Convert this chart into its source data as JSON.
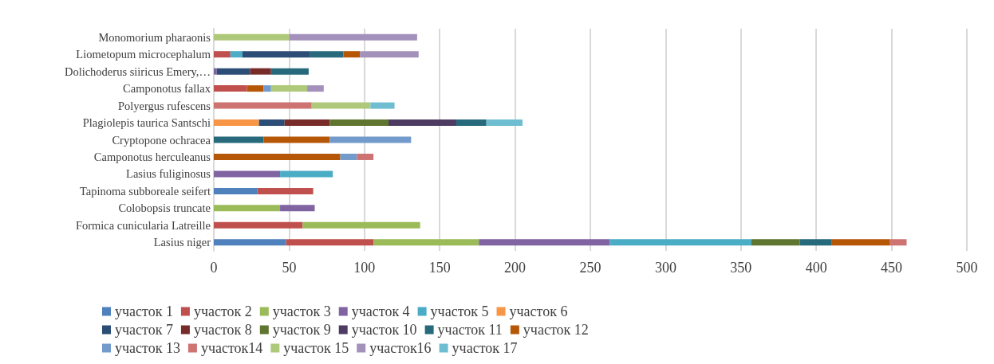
{
  "chart_data": {
    "type": "bar",
    "orientation": "horizontal",
    "stacked": true,
    "grid": "x",
    "legend": "bottom",
    "categories": [
      "Monomorium pharaonis",
      "Liometopum microcephalum",
      "Dolichoderus siiricus Emery,…",
      "Camponotus fallax",
      "Polyergus rufescens",
      "Plagiolepis taurica Santschi",
      "Cryptopone ochracea",
      "Camponotus herculeanus",
      "Lasius fuliginosus",
      "Tapinoma subboreale seifert",
      "Colobopsis truncate",
      "Formica cunicularia Latreille",
      "Lasius niger"
    ],
    "xlim": [
      0,
      500
    ],
    "xticks": [
      0,
      50,
      100,
      150,
      200,
      250,
      300,
      350,
      400,
      450,
      500
    ],
    "series": [
      {
        "name": "участок 1",
        "color": "#4f81bd",
        "values": [
          null,
          null,
          null,
          null,
          null,
          null,
          null,
          null,
          null,
          29,
          null,
          null,
          48
        ]
      },
      {
        "name": "участок 2",
        "color": "#c0504d",
        "values": [
          null,
          11,
          null,
          22,
          null,
          null,
          null,
          null,
          null,
          37,
          null,
          59,
          58
        ]
      },
      {
        "name": "участок 3",
        "color": "#9bbb59",
        "values": [
          null,
          null,
          null,
          null,
          null,
          null,
          null,
          null,
          null,
          null,
          44,
          78,
          70
        ]
      },
      {
        "name": "участок 4",
        "color": "#8064a2",
        "values": [
          null,
          null,
          2,
          null,
          null,
          null,
          null,
          null,
          44,
          null,
          23,
          null,
          87
        ]
      },
      {
        "name": "участок 5",
        "color": "#4bacc6",
        "values": [
          null,
          8,
          null,
          null,
          null,
          null,
          null,
          null,
          35,
          null,
          null,
          null,
          94
        ]
      },
      {
        "name": "участок 6",
        "color": "#f79646",
        "values": [
          null,
          null,
          null,
          null,
          null,
          30,
          null,
          null,
          null,
          null,
          null,
          null,
          null
        ]
      },
      {
        "name": "участок 7",
        "color": "#2c4d75",
        "values": [
          null,
          45,
          22,
          null,
          null,
          17,
          null,
          null,
          null,
          null,
          null,
          null,
          null
        ]
      },
      {
        "name": "участок 8",
        "color": "#772c2a",
        "values": [
          null,
          null,
          14,
          null,
          null,
          30,
          null,
          null,
          null,
          null,
          null,
          null,
          null
        ]
      },
      {
        "name": "участок 9",
        "color": "#5f7530",
        "values": [
          null,
          null,
          null,
          null,
          null,
          39,
          null,
          null,
          null,
          null,
          null,
          null,
          32
        ]
      },
      {
        "name": "участок 10",
        "color": "#4d3b62",
        "values": [
          null,
          null,
          null,
          null,
          null,
          45,
          null,
          null,
          null,
          null,
          null,
          null,
          null
        ]
      },
      {
        "name": "участок 11",
        "color": "#276a7c",
        "values": [
          null,
          22,
          25,
          null,
          null,
          20,
          33,
          null,
          null,
          null,
          null,
          null,
          21
        ]
      },
      {
        "name": "участок 12",
        "color": "#b65708",
        "values": [
          null,
          11,
          null,
          11,
          null,
          null,
          44,
          84,
          null,
          null,
          null,
          null,
          39
        ]
      },
      {
        "name": "участок 13",
        "color": "#729aca",
        "values": [
          null,
          null,
          null,
          5,
          null,
          null,
          54,
          11,
          null,
          null,
          null,
          null,
          null
        ]
      },
      {
        "name": "участок14",
        "color": "#cd7371",
        "values": [
          null,
          null,
          null,
          null,
          65,
          null,
          null,
          11,
          null,
          null,
          null,
          null,
          11
        ]
      },
      {
        "name": "участок 15",
        "color": "#afc97a",
        "values": [
          50,
          null,
          null,
          24,
          39,
          null,
          null,
          null,
          null,
          null,
          null,
          null,
          null
        ]
      },
      {
        "name": "участок16",
        "color": "#a491bb",
        "values": [
          85,
          39,
          null,
          11,
          null,
          null,
          null,
          null,
          null,
          null,
          null,
          null,
          null
        ]
      },
      {
        "name": "участок 17",
        "color": "#6fbdd1",
        "values": [
          null,
          null,
          null,
          null,
          16,
          24,
          null,
          null,
          null,
          null,
          null,
          null,
          null
        ]
      }
    ]
  }
}
